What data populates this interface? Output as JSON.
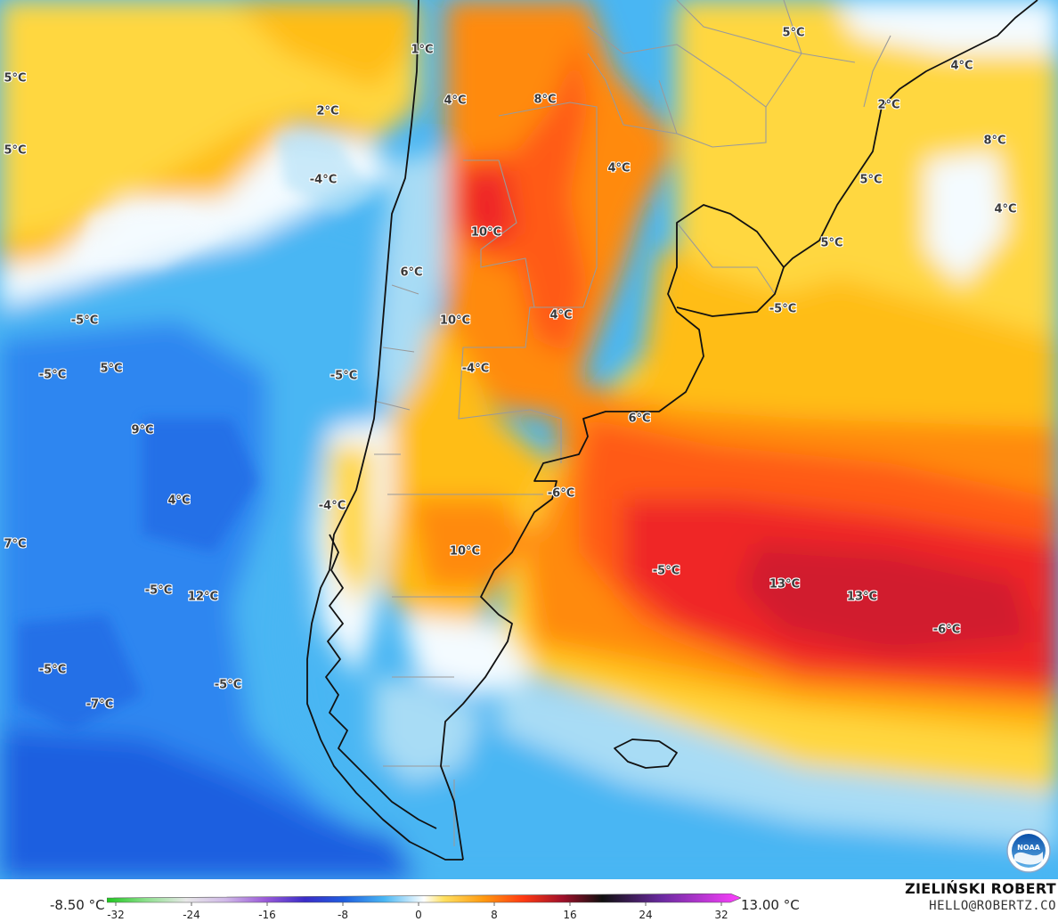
{
  "map": {
    "region": "Southern South America",
    "colors": {
      "deep_blue": "#1d5fe0",
      "blue": "#2f86f0",
      "sky": "#49b6f3",
      "light_cyan": "#a8dcf5",
      "white": "#f4fbff",
      "yellow": "#ffd73f",
      "gold": "#ffbd16",
      "orange": "#ff8a10",
      "red_orange": "#ff5a12",
      "red": "#ef2626",
      "dark_red": "#d11f2d",
      "coast": "#111111",
      "borders": "#9a9a9a"
    },
    "labels": [
      {
        "text": "1°C"
      },
      {
        "text": "5°C"
      },
      {
        "text": "5°C"
      },
      {
        "text": "4°C"
      },
      {
        "text": "2°C"
      },
      {
        "text": "8°C"
      },
      {
        "text": "4°C"
      },
      {
        "text": "2°C"
      },
      {
        "text": "5°C"
      },
      {
        "text": "8°C"
      },
      {
        "text": "-4°C"
      },
      {
        "text": "4°C"
      },
      {
        "text": "5°C"
      },
      {
        "text": "10°C"
      },
      {
        "text": "4°C"
      },
      {
        "text": "6°C"
      },
      {
        "text": "-5°C"
      },
      {
        "text": "5°C"
      },
      {
        "text": "10°C"
      },
      {
        "text": "4°C"
      },
      {
        "text": "-5°C"
      },
      {
        "text": "-5°C"
      },
      {
        "text": "5°C"
      },
      {
        "text": "-4°C"
      },
      {
        "text": "-5°C"
      },
      {
        "text": "9°C"
      },
      {
        "text": "6°C"
      },
      {
        "text": "-6°C"
      },
      {
        "text": "4°C"
      },
      {
        "text": "-4°C"
      },
      {
        "text": "7°C"
      },
      {
        "text": "10°C"
      },
      {
        "text": "-5°C"
      },
      {
        "text": "-5°C"
      },
      {
        "text": "12°C"
      },
      {
        "text": "13°C"
      },
      {
        "text": "13°C"
      },
      {
        "text": "-6°C"
      },
      {
        "text": "-5°C"
      },
      {
        "text": "-5°C"
      },
      {
        "text": "-7°C"
      }
    ]
  },
  "legend": {
    "min_label": "-8.50 °C",
    "max_label": "13.00 °C",
    "ticks": [
      "-32",
      "-24",
      "-16",
      "-8",
      "0",
      "8",
      "16",
      "24",
      "32"
    ],
    "range": [
      -32,
      32
    ],
    "stops": [
      {
        "value": -32,
        "color": "#1ec81e"
      },
      {
        "value": -28,
        "color": "#8fe08f"
      },
      {
        "value": -24,
        "color": "#e8e8e8"
      },
      {
        "value": -20,
        "color": "#d0b8e8"
      },
      {
        "value": -16,
        "color": "#9a5ad8"
      },
      {
        "value": -12,
        "color": "#3a2cc8"
      },
      {
        "value": -8,
        "color": "#1f5fe0"
      },
      {
        "value": -4,
        "color": "#49b6f3"
      },
      {
        "value": 0,
        "color": "#ffffff"
      },
      {
        "value": 2,
        "color": "#ffe060"
      },
      {
        "value": 6,
        "color": "#ff9a10"
      },
      {
        "value": 10,
        "color": "#ff3a12"
      },
      {
        "value": 14,
        "color": "#a0102a"
      },
      {
        "value": 18,
        "color": "#101010"
      },
      {
        "value": 24,
        "color": "#6a2aa0"
      },
      {
        "value": 32,
        "color": "#ff40ff"
      }
    ]
  },
  "credits": {
    "author": "ZIELIŃSKI ROBERT",
    "email": "HELLO@ROBERTZ.CO",
    "logo_icon": "noaa-logo",
    "logo_text": "NOAA"
  }
}
